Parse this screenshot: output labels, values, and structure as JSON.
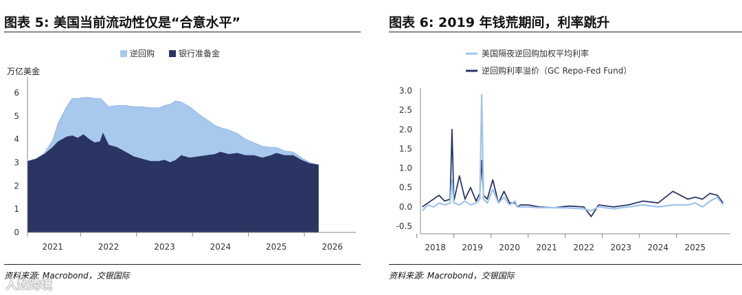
{
  "left": {
    "title": "图表 5: 美国当前流动性仅是“合意水平”",
    "source": "资料来源: Macrobond，交银国际",
    "chart_data": {
      "type": "area",
      "title": "图表 5: 美国当前流动性仅是“合意水平”",
      "ylabel": "万亿美金",
      "ylim": [
        0,
        6.5
      ],
      "yticks": [
        0,
        1,
        2,
        3,
        4,
        5,
        6
      ],
      "xlim": [
        2020.55,
        2026.2
      ],
      "xticks": [
        "2021",
        "2022",
        "2023",
        "2024",
        "2025",
        "2026"
      ],
      "xtick_values": [
        2021,
        2022,
        2023,
        2024,
        2025,
        2026
      ],
      "legend_position": "top-center",
      "stacked": true,
      "series": [
        {
          "name": "银行准备金",
          "color": "#2b3564",
          "x": [
            2020.55,
            2020.7,
            2020.85,
            2021.0,
            2021.1,
            2021.25,
            2021.35,
            2021.45,
            2021.55,
            2021.65,
            2021.75,
            2021.85,
            2021.9,
            2022.0,
            2022.15,
            2022.3,
            2022.45,
            2022.6,
            2022.75,
            2022.9,
            2023.0,
            2023.1,
            2023.2,
            2023.3,
            2023.45,
            2023.6,
            2023.75,
            2023.9,
            2024.0,
            2024.15,
            2024.3,
            2024.45,
            2024.6,
            2024.75,
            2024.9,
            2025.0,
            2025.15,
            2025.3,
            2025.45,
            2025.6,
            2025.75
          ],
          "values": [
            3.05,
            3.15,
            3.35,
            3.65,
            3.9,
            4.1,
            4.15,
            4.05,
            4.2,
            4.0,
            3.85,
            3.9,
            4.25,
            3.75,
            3.65,
            3.45,
            3.25,
            3.15,
            3.05,
            3.05,
            3.1,
            3.0,
            3.1,
            3.3,
            3.2,
            3.25,
            3.3,
            3.35,
            3.45,
            3.35,
            3.4,
            3.3,
            3.3,
            3.2,
            3.3,
            3.4,
            3.3,
            3.3,
            3.1,
            2.95,
            2.9
          ]
        },
        {
          "name": "逆回购",
          "color": "#a9c8ee",
          "x": [
            2020.55,
            2020.7,
            2020.85,
            2021.0,
            2021.1,
            2021.25,
            2021.35,
            2021.45,
            2021.55,
            2021.65,
            2021.75,
            2021.85,
            2021.9,
            2022.0,
            2022.15,
            2022.3,
            2022.45,
            2022.6,
            2022.75,
            2022.9,
            2023.0,
            2023.1,
            2023.2,
            2023.3,
            2023.45,
            2023.6,
            2023.75,
            2023.9,
            2024.0,
            2024.15,
            2024.3,
            2024.45,
            2024.6,
            2024.75,
            2024.9,
            2025.0,
            2025.15,
            2025.3,
            2025.45,
            2025.6,
            2025.75
          ],
          "values": [
            0.0,
            0.0,
            0.05,
            0.3,
            0.8,
            1.3,
            1.6,
            1.7,
            1.6,
            1.8,
            1.9,
            1.85,
            1.4,
            1.65,
            1.8,
            2.0,
            2.15,
            2.25,
            2.3,
            2.3,
            2.35,
            2.5,
            2.55,
            2.3,
            2.2,
            1.85,
            1.55,
            1.25,
            1.05,
            1.05,
            0.85,
            0.7,
            0.55,
            0.5,
            0.35,
            0.25,
            0.2,
            0.15,
            0.1,
            0.05,
            0.0
          ]
        }
      ]
    }
  },
  "right": {
    "title": "图表 6: 2019 年钱荒期间，利率跳升",
    "source": "资料来源: Macrobond，交银国际",
    "chart_data": {
      "type": "line",
      "title": "图表 6: 2019 年钱荒期间，利率跳升",
      "ylim": [
        -0.5,
        3.0
      ],
      "yticks": [
        -0.5,
        0.0,
        0.5,
        1.0,
        1.5,
        2.0,
        2.5,
        3.0
      ],
      "ytick_labels": [
        "-0.5",
        "0.0",
        "0.5",
        "1.0",
        "1.5",
        "2.0",
        "2.5",
        "3.0"
      ],
      "xlim": [
        2017.6,
        2025.8
      ],
      "xticks": [
        "2018",
        "2019",
        "2020",
        "2021",
        "2022",
        "2023",
        "2024",
        "2025"
      ],
      "xtick_values": [
        2018,
        2019,
        2020,
        2021,
        2022,
        2023,
        2024,
        2025
      ],
      "legend_position": "top-center",
      "series": [
        {
          "name": "美国隔夜逆回购加权平均利率",
          "color": "#9ec3ee",
          "x": [
            2017.65,
            2017.8,
            2017.95,
            2018.1,
            2018.25,
            2018.4,
            2018.45,
            2018.5,
            2018.65,
            2018.8,
            2018.95,
            2019.1,
            2019.2,
            2019.25,
            2019.3,
            2019.4,
            2019.55,
            2019.7,
            2019.85,
            2020.0,
            2020.15,
            2020.2,
            2020.3,
            2020.5,
            2020.8,
            2021.2,
            2021.6,
            2022.0,
            2022.2,
            2022.4,
            2022.8,
            2023.2,
            2023.6,
            2024.0,
            2024.4,
            2024.8,
            2025.0,
            2025.2,
            2025.4,
            2025.6,
            2025.75
          ],
          "values": [
            -0.1,
            0.05,
            0.0,
            0.1,
            0.05,
            0.1,
            0.7,
            0.1,
            0.05,
            0.15,
            0.05,
            0.1,
            0.2,
            2.9,
            0.2,
            0.1,
            0.45,
            0.1,
            0.25,
            0.05,
            0.15,
            0.0,
            0.0,
            0.0,
            -0.02,
            -0.02,
            -0.03,
            -0.05,
            -0.1,
            0.0,
            -0.05,
            0.0,
            0.05,
            0.0,
            0.05,
            0.05,
            0.1,
            0.0,
            0.15,
            0.25,
            0.05
          ]
        },
        {
          "name": "逆回购利率溢价（GC Repo-Fed Fund）",
          "color": "#2b3564",
          "x": [
            2017.65,
            2017.8,
            2017.95,
            2018.1,
            2018.25,
            2018.4,
            2018.45,
            2018.5,
            2018.65,
            2018.8,
            2018.95,
            2019.1,
            2019.2,
            2019.25,
            2019.3,
            2019.4,
            2019.55,
            2019.7,
            2019.85,
            2020.0,
            2020.15,
            2020.2,
            2020.3,
            2020.5,
            2020.8,
            2021.2,
            2021.6,
            2022.0,
            2022.2,
            2022.4,
            2022.8,
            2023.2,
            2023.6,
            2024.0,
            2024.4,
            2024.8,
            2025.0,
            2025.2,
            2025.4,
            2025.6,
            2025.75
          ],
          "values": [
            0.0,
            0.1,
            0.2,
            0.3,
            0.15,
            0.2,
            2.0,
            0.15,
            0.8,
            0.2,
            0.5,
            0.15,
            0.35,
            1.2,
            0.3,
            0.2,
            0.7,
            0.1,
            0.4,
            0.1,
            0.1,
            0.0,
            0.05,
            0.05,
            0.0,
            -0.02,
            0.02,
            0.0,
            -0.25,
            0.05,
            0.0,
            0.05,
            0.15,
            0.1,
            0.4,
            0.2,
            0.25,
            0.2,
            0.35,
            0.3,
            0.1
          ]
        }
      ]
    }
  },
  "watermark": "人数跨境"
}
